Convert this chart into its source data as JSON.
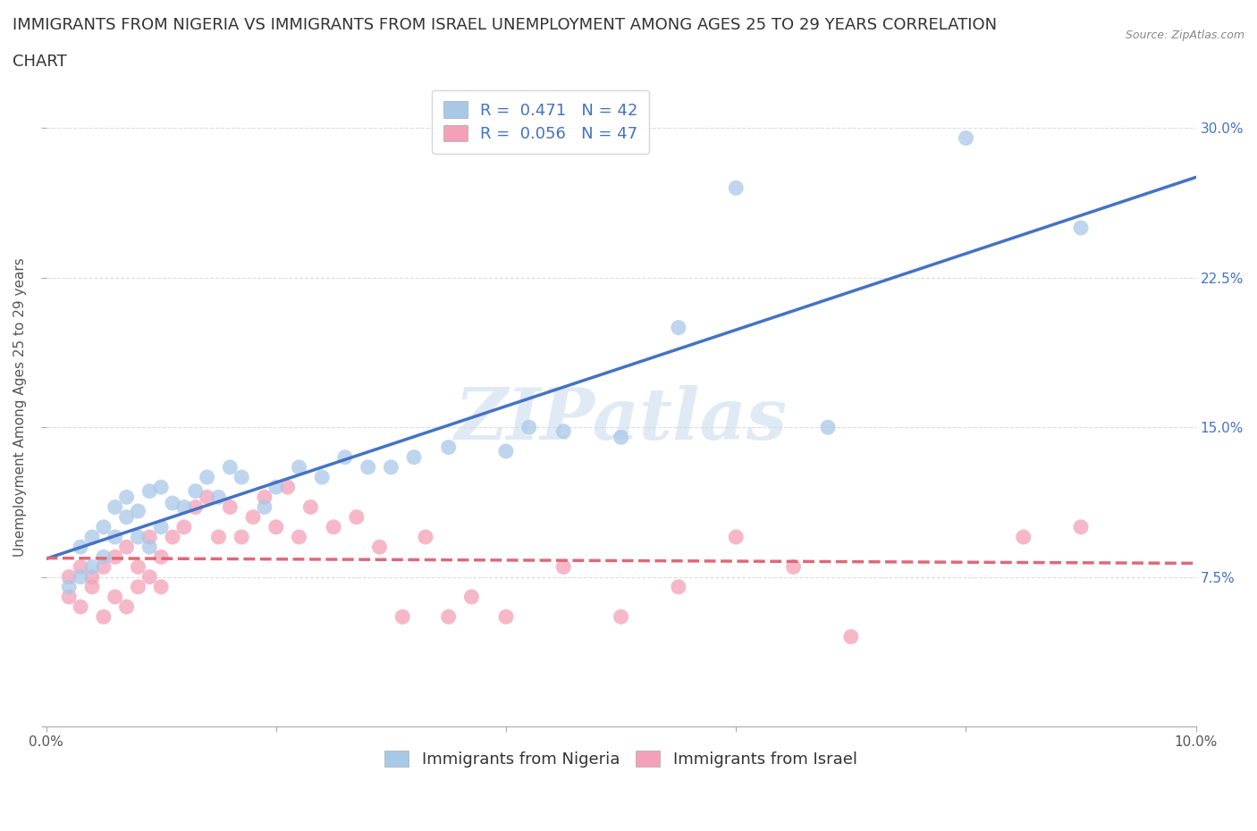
{
  "title_line1": "IMMIGRANTS FROM NIGERIA VS IMMIGRANTS FROM ISRAEL UNEMPLOYMENT AMONG AGES 25 TO 29 YEARS CORRELATION",
  "title_line2": "CHART",
  "source": "Source: ZipAtlas.com",
  "ylabel": "Unemployment Among Ages 25 to 29 years",
  "xlim": [
    0.0,
    0.1
  ],
  "ylim": [
    0.0,
    0.32
  ],
  "xticks": [
    0.0,
    0.02,
    0.04,
    0.06,
    0.08,
    0.1
  ],
  "xticklabels": [
    "0.0%",
    "",
    "",
    "",
    "",
    "10.0%"
  ],
  "yticks": [
    0.0,
    0.075,
    0.15,
    0.225,
    0.3
  ],
  "yticklabels": [
    "",
    "7.5%",
    "15.0%",
    "22.5%",
    "30.0%"
  ],
  "nigeria_R": 0.471,
  "nigeria_N": 42,
  "israel_R": 0.056,
  "israel_N": 47,
  "nigeria_color": "#a8c8e8",
  "israel_color": "#f4a0b8",
  "nigeria_line_color": "#4472c4",
  "israel_line_color": "#e06878",
  "watermark_text": "ZIPatlas",
  "nigeria_scatter_x": [
    0.002,
    0.003,
    0.003,
    0.004,
    0.004,
    0.005,
    0.005,
    0.006,
    0.006,
    0.007,
    0.007,
    0.008,
    0.008,
    0.009,
    0.009,
    0.01,
    0.01,
    0.011,
    0.012,
    0.013,
    0.014,
    0.015,
    0.016,
    0.017,
    0.019,
    0.02,
    0.022,
    0.024,
    0.026,
    0.028,
    0.03,
    0.032,
    0.035,
    0.04,
    0.042,
    0.045,
    0.05,
    0.055,
    0.06,
    0.068,
    0.08,
    0.09
  ],
  "nigeria_scatter_y": [
    0.07,
    0.075,
    0.09,
    0.08,
    0.095,
    0.085,
    0.1,
    0.095,
    0.11,
    0.105,
    0.115,
    0.095,
    0.108,
    0.09,
    0.118,
    0.1,
    0.12,
    0.112,
    0.11,
    0.118,
    0.125,
    0.115,
    0.13,
    0.125,
    0.11,
    0.12,
    0.13,
    0.125,
    0.135,
    0.13,
    0.13,
    0.135,
    0.14,
    0.138,
    0.15,
    0.148,
    0.145,
    0.2,
    0.27,
    0.15,
    0.295,
    0.25
  ],
  "israel_scatter_x": [
    0.002,
    0.002,
    0.003,
    0.003,
    0.004,
    0.004,
    0.005,
    0.005,
    0.006,
    0.006,
    0.007,
    0.007,
    0.008,
    0.008,
    0.009,
    0.009,
    0.01,
    0.01,
    0.011,
    0.012,
    0.013,
    0.014,
    0.015,
    0.016,
    0.017,
    0.018,
    0.019,
    0.02,
    0.021,
    0.022,
    0.023,
    0.025,
    0.027,
    0.029,
    0.031,
    0.033,
    0.035,
    0.037,
    0.04,
    0.045,
    0.05,
    0.055,
    0.06,
    0.065,
    0.07,
    0.085,
    0.09
  ],
  "israel_scatter_y": [
    0.065,
    0.075,
    0.06,
    0.08,
    0.07,
    0.075,
    0.055,
    0.08,
    0.065,
    0.085,
    0.06,
    0.09,
    0.07,
    0.08,
    0.075,
    0.095,
    0.07,
    0.085,
    0.095,
    0.1,
    0.11,
    0.115,
    0.095,
    0.11,
    0.095,
    0.105,
    0.115,
    0.1,
    0.12,
    0.095,
    0.11,
    0.1,
    0.105,
    0.09,
    0.055,
    0.095,
    0.055,
    0.065,
    0.055,
    0.08,
    0.055,
    0.07,
    0.095,
    0.08,
    0.045,
    0.095,
    0.1
  ],
  "background_color": "#ffffff",
  "grid_color": "#dddddd",
  "title_fontsize": 13,
  "axis_label_fontsize": 11,
  "tick_fontsize": 11,
  "legend_fontsize": 13
}
